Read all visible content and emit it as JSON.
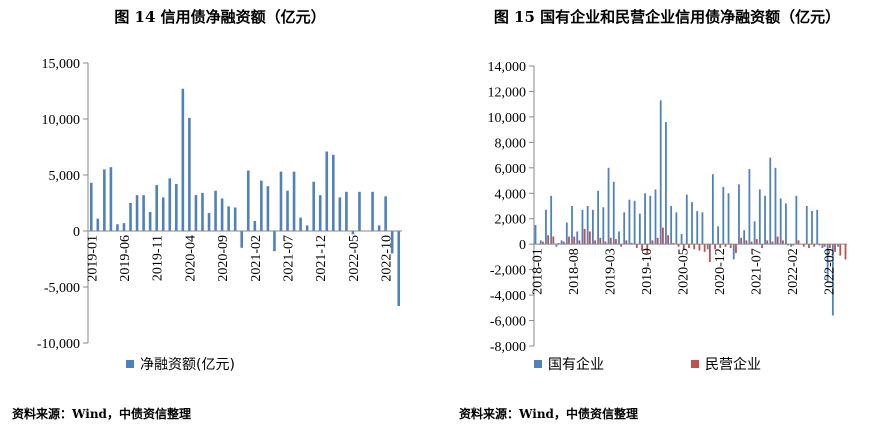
{
  "charts": {
    "left": {
      "title": "图 14  信用债净融资额（亿元）",
      "source": "资料来源：Wind，中债资信整理"
    },
    "right": {
      "title": "图 15  国有企业和民营企业信用债净融资额（亿元）",
      "source": "资料来源：Wind，中债资信整理"
    }
  },
  "colors": {
    "blue": "#4f81bd",
    "red": "#c0504d",
    "axis": "#888888"
  },
  "chart_data": [
    {
      "type": "bar",
      "title": "图 14  信用债净融资额（亿元）",
      "ylim": [
        -10000,
        15000
      ],
      "yticks": [
        -10000,
        -5000,
        0,
        5000,
        10000,
        15000
      ],
      "ytick_labels": [
        "-10,000",
        "-5,000",
        "0",
        "5,000",
        "10,000",
        "15,000"
      ],
      "x_tick_labels": [
        "2019-01",
        "2019-06",
        "2019-11",
        "2020-04",
        "2020-09",
        "2021-02",
        "2021-07",
        "2021-12",
        "2022-05",
        "2022-10"
      ],
      "x_tick_every": 5,
      "legend_position": "bottom",
      "series": [
        {
          "name": "净融资额(亿元)",
          "color": "#4f81bd",
          "values": [
            4300,
            1100,
            5500,
            5700,
            600,
            700,
            2500,
            3200,
            3200,
            1700,
            4100,
            3000,
            4700,
            4200,
            12700,
            10100,
            3200,
            3400,
            1600,
            3600,
            2900,
            2200,
            2100,
            -1500,
            5400,
            900,
            4500,
            4000,
            -1800,
            5300,
            3600,
            5300,
            1200,
            500,
            4400,
            3200,
            7100,
            6800,
            3000,
            3500,
            -300,
            3500,
            0,
            3500,
            500,
            3100,
            -2000,
            -6700
          ]
        }
      ]
    },
    {
      "type": "bar",
      "title": "图 15  国有企业和民营企业信用债净融资额（亿元）",
      "ylim": [
        -8000,
        14000
      ],
      "yticks": [
        -8000,
        -6000,
        -4000,
        -2000,
        0,
        2000,
        4000,
        6000,
        8000,
        10000,
        12000,
        14000
      ],
      "ytick_labels": [
        "-8,000",
        "-6,000",
        "-4,000",
        "-2,000",
        "0",
        "2,000",
        "4,000",
        "6,000",
        "8,000",
        "10,000",
        "12,000",
        "14,000"
      ],
      "x_tick_labels": [
        "2018-01",
        "2018-08",
        "2019-03",
        "2019-10",
        "2020-05",
        "2020-12",
        "2021-07",
        "2022-02",
        "2022-09"
      ],
      "x_tick_every": 7,
      "legend_position": "bottom",
      "categories_count": 60,
      "series": [
        {
          "name": "国有企业",
          "color": "#4f81bd",
          "values": [
            1500,
            300,
            2700,
            3800,
            -200,
            300,
            1700,
            3000,
            1000,
            2700,
            3000,
            2700,
            4200,
            2900,
            6000,
            4900,
            1000,
            2500,
            3500,
            3400,
            2400,
            4000,
            3800,
            4300,
            11300,
            9600,
            3000,
            2500,
            800,
            3900,
            3300,
            2600,
            2500,
            -400,
            5500,
            1400,
            4500,
            4000,
            -1200,
            4700,
            1100,
            5900,
            1800,
            4300,
            3800,
            6800,
            6000,
            3600,
            3200,
            -200,
            3800,
            0,
            3000,
            2600,
            2700,
            -300,
            -3000,
            -5600,
            -200,
            0
          ],
          "note": "approximate readings"
        },
        {
          "name": "民营企业",
          "color": "#c0504d",
          "values": [
            0,
            200,
            700,
            600,
            100,
            200,
            600,
            600,
            300,
            1200,
            1000,
            300,
            500,
            200,
            500,
            400,
            -200,
            300,
            100,
            -300,
            -500,
            -700,
            300,
            500,
            1300,
            700,
            100,
            -200,
            -400,
            -300,
            -400,
            -500,
            -600,
            -1400,
            -400,
            -300,
            -200,
            -300,
            -700,
            500,
            300,
            200,
            400,
            -300,
            300,
            200,
            600,
            300,
            -100,
            -100,
            300,
            -200,
            -300,
            -200,
            -100,
            -200,
            -300,
            -600,
            -900,
            -1200
          ]
        }
      ]
    }
  ]
}
